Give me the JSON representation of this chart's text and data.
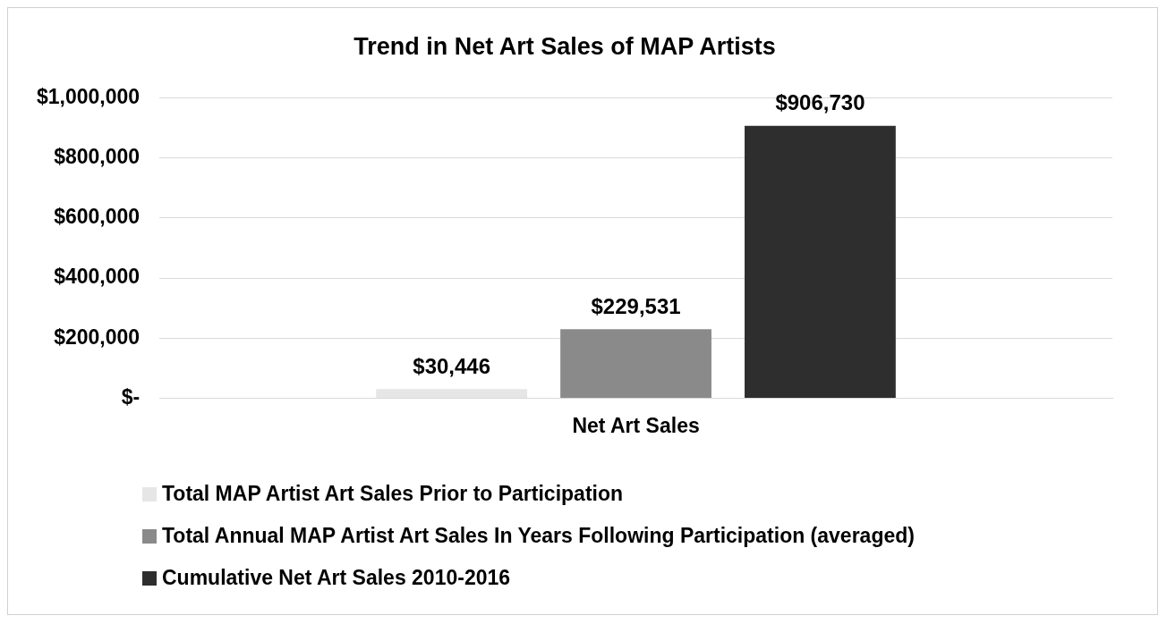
{
  "chart_data": {
    "type": "bar",
    "title": "Trend in Net Art Sales of MAP Artists",
    "categories": [
      "Net Art Sales"
    ],
    "series": [
      {
        "name": "Total MAP Artist Art Sales Prior to Participation",
        "color": "#e6e6e6",
        "values": [
          30446
        ],
        "value_labels": [
          "$30,446"
        ]
      },
      {
        "name": "Total Annual MAP Artist Art Sales In Years Following Participation (averaged)",
        "color": "#8a8a8a",
        "values": [
          229531
        ],
        "value_labels": [
          "$229,531"
        ]
      },
      {
        "name": "Cumulative Net Art Sales 2010-2016",
        "color": "#2e2e2e",
        "values": [
          906730
        ],
        "value_labels": [
          "$906,730"
        ]
      }
    ],
    "ylim": [
      0,
      1000000
    ],
    "yticks": [
      {
        "value": 0,
        "label": "$-"
      },
      {
        "value": 200000,
        "label": "$200,000"
      },
      {
        "value": 400000,
        "label": "$400,000"
      },
      {
        "value": 600000,
        "label": "$600,000"
      },
      {
        "value": 800000,
        "label": "$800,000"
      },
      {
        "value": 1000000,
        "label": "$1,000,000"
      }
    ],
    "grid": "y",
    "legend": "bottom"
  }
}
